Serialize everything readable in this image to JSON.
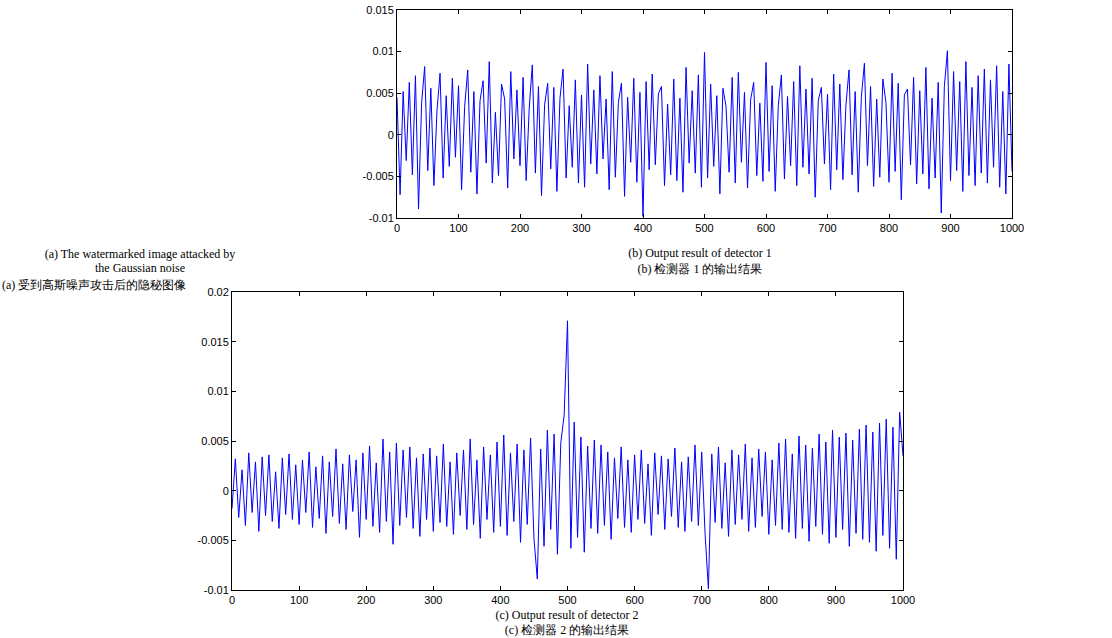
{
  "image_panel": {
    "title": "(a) The watermarked image attacked by the Gaussian noise",
    "subtitle": "(a) 受到高斯噪声攻击后的隐秘图像"
  },
  "chart_data": [
    {
      "type": "line",
      "title": "(b) Output result of detector 1",
      "subtitle": "(b) 检测器 1 的输出结果",
      "color": "#0000ff",
      "xlim": [
        0,
        1000
      ],
      "xticks": [
        0,
        100,
        200,
        300,
        400,
        500,
        600,
        700,
        800,
        900,
        1000
      ],
      "ylim": [
        -0.01,
        0.015
      ],
      "yticks": [
        -0.01,
        -0.005,
        0,
        0.005,
        0.01,
        0.015
      ],
      "x": [
        0,
        5,
        10,
        15,
        20,
        25,
        30,
        35,
        40,
        45,
        50,
        55,
        60,
        65,
        70,
        75,
        80,
        85,
        90,
        95,
        100,
        105,
        110,
        115,
        120,
        125,
        130,
        135,
        140,
        145,
        150,
        155,
        160,
        165,
        170,
        175,
        180,
        185,
        190,
        195,
        200,
        205,
        210,
        215,
        220,
        225,
        230,
        235,
        240,
        245,
        250,
        255,
        260,
        265,
        270,
        275,
        280,
        285,
        290,
        295,
        300,
        305,
        310,
        315,
        320,
        325,
        330,
        335,
        340,
        345,
        350,
        355,
        360,
        365,
        370,
        375,
        380,
        385,
        390,
        395,
        400,
        405,
        410,
        415,
        420,
        425,
        430,
        435,
        440,
        445,
        450,
        455,
        460,
        465,
        470,
        475,
        480,
        485,
        490,
        495,
        500,
        505,
        510,
        515,
        520,
        525,
        530,
        535,
        540,
        545,
        550,
        555,
        560,
        565,
        570,
        575,
        580,
        585,
        590,
        595,
        600,
        605,
        610,
        615,
        620,
        625,
        630,
        635,
        640,
        645,
        650,
        655,
        660,
        665,
        670,
        675,
        680,
        685,
        690,
        695,
        700,
        705,
        710,
        715,
        720,
        725,
        730,
        735,
        740,
        745,
        750,
        755,
        760,
        765,
        770,
        775,
        780,
        785,
        790,
        795,
        800,
        805,
        810,
        815,
        820,
        825,
        830,
        835,
        840,
        845,
        850,
        855,
        860,
        865,
        870,
        875,
        880,
        885,
        890,
        895,
        900,
        905,
        910,
        915,
        920,
        925,
        930,
        935,
        940,
        945,
        950,
        955,
        960,
        965,
        970,
        975,
        980,
        985,
        990,
        995,
        1000
      ],
      "values": [
        0.0045,
        -0.0072,
        0.0052,
        -0.0031,
        0.0063,
        -0.0048,
        0.0071,
        -0.0089,
        0.0038,
        0.0082,
        -0.0043,
        0.0056,
        -0.0061,
        0.0029,
        0.0074,
        -0.0052,
        0.0047,
        -0.0038,
        0.0068,
        -0.0027,
        0.0059,
        -0.0066,
        0.0034,
        0.0078,
        -0.0045,
        0.0052,
        -0.0071,
        0.0041,
        0.0065,
        -0.0034,
        0.0088,
        -0.0058,
        0.0027,
        -0.0049,
        0.0061,
        0.0043,
        -0.0064,
        0.0076,
        -0.0029,
        0.0054,
        -0.0037,
        0.0069,
        -0.0055,
        0.0032,
        0.0084,
        -0.0046,
        0.0058,
        -0.0073,
        0.0036,
        0.0062,
        -0.0041,
        0.0057,
        -0.0068,
        0.0044,
        0.0079,
        -0.0052,
        0.0035,
        -0.0039,
        0.0066,
        -0.0058,
        0.0048,
        -0.0063,
        0.0085,
        -0.0035,
        0.0054,
        -0.0047,
        0.0071,
        -0.0029,
        0.0043,
        -0.0066,
        0.0076,
        -0.0051,
        0.0039,
        0.0062,
        -0.0074,
        0.0045,
        -0.0033,
        0.0068,
        -0.0057,
        0.0051,
        -0.0098,
        0.0064,
        -0.0042,
        0.0073,
        -0.0036,
        0.0049,
        0.0058,
        -0.0061,
        0.0037,
        -0.0048,
        0.0067,
        -0.0055,
        0.0044,
        -0.0069,
        0.0081,
        -0.0034,
        0.0053,
        -0.0046,
        0.0072,
        -0.0063,
        0.0099,
        -0.0052,
        0.0061,
        -0.0038,
        0.0047,
        -0.0071,
        0.0056,
        0.0034,
        -0.0045,
        0.0069,
        -0.0058,
        0.0075,
        -0.0033,
        0.0051,
        -0.0064,
        0.0042,
        0.0063,
        -0.0049,
        0.0038,
        -0.0056,
        0.0087,
        -0.0044,
        0.0059,
        -0.0068,
        0.0035,
        0.0072,
        -0.0053,
        0.0046,
        -0.0037,
        0.0064,
        -0.0061,
        0.0083,
        -0.0039,
        0.0055,
        -0.0047,
        0.0068,
        -0.0075,
        0.0041,
        0.0057,
        -0.0035,
        0.0049,
        -0.0066,
        0.0073,
        -0.0042,
        0.0061,
        -0.0054,
        0.0036,
        0.0078,
        -0.0048,
        0.0052,
        -0.0069,
        0.0045,
        0.0086,
        -0.0037,
        0.0058,
        -0.0062,
        0.0043,
        -0.0051,
        0.0067,
        0.0039,
        -0.0057,
        0.0074,
        -0.0044,
        0.0062,
        -0.0078,
        0.0048,
        0.0055,
        -0.0036,
        0.0069,
        -0.0059,
        0.0053,
        -0.0047,
        0.0081,
        -0.0065,
        0.0044,
        -0.0052,
        0.0063,
        -0.0094,
        0.0058,
        0.0101,
        -0.0055,
        0.0076,
        -0.0043,
        0.0064,
        -0.0068,
        0.0088,
        -0.0049,
        0.0057,
        -0.0061,
        0.0071,
        -0.0046,
        0.0079,
        -0.0058,
        0.0066,
        -0.0039,
        0.0083,
        -0.0063,
        0.0052,
        -0.0071,
        0.0085,
        -0.0044
      ]
    },
    {
      "type": "line",
      "title": "(c) Output result of detector 2",
      "subtitle": "(c) 检测器 2 的输出结果",
      "color": "#0000ff",
      "xlim": [
        0,
        1000
      ],
      "xticks": [
        0,
        100,
        200,
        300,
        400,
        500,
        600,
        700,
        800,
        900,
        1000
      ],
      "ylim": [
        -0.01,
        0.02
      ],
      "yticks": [
        -0.01,
        -0.005,
        0,
        0.005,
        0.01,
        0.015,
        0.02
      ],
      "x": [
        0,
        5,
        10,
        15,
        20,
        25,
        30,
        35,
        40,
        45,
        50,
        55,
        60,
        65,
        70,
        75,
        80,
        85,
        90,
        95,
        100,
        105,
        110,
        115,
        120,
        125,
        130,
        135,
        140,
        145,
        150,
        155,
        160,
        165,
        170,
        175,
        180,
        185,
        190,
        195,
        200,
        205,
        210,
        215,
        220,
        225,
        230,
        235,
        240,
        245,
        250,
        255,
        260,
        265,
        270,
        275,
        280,
        285,
        290,
        295,
        300,
        305,
        310,
        315,
        320,
        325,
        330,
        335,
        340,
        345,
        350,
        355,
        360,
        365,
        370,
        375,
        380,
        385,
        390,
        395,
        400,
        405,
        410,
        415,
        420,
        425,
        430,
        435,
        440,
        445,
        450,
        455,
        460,
        465,
        470,
        475,
        480,
        485,
        490,
        495,
        500,
        505,
        510,
        515,
        520,
        525,
        530,
        535,
        540,
        545,
        550,
        555,
        560,
        565,
        570,
        575,
        580,
        585,
        590,
        595,
        600,
        605,
        610,
        615,
        620,
        625,
        630,
        635,
        640,
        645,
        650,
        655,
        660,
        665,
        670,
        675,
        680,
        685,
        690,
        695,
        700,
        705,
        710,
        715,
        720,
        725,
        730,
        735,
        740,
        745,
        750,
        755,
        760,
        765,
        770,
        775,
        780,
        785,
        790,
        795,
        800,
        805,
        810,
        815,
        820,
        825,
        830,
        835,
        840,
        845,
        850,
        855,
        860,
        865,
        870,
        875,
        880,
        885,
        890,
        895,
        900,
        905,
        910,
        915,
        920,
        925,
        930,
        935,
        940,
        945,
        950,
        955,
        960,
        965,
        970,
        975,
        980,
        985,
        990,
        995,
        1000
      ],
      "values": [
        -0.0018,
        0.0032,
        -0.0027,
        0.0021,
        -0.0035,
        0.0038,
        -0.0022,
        0.0029,
        -0.0041,
        0.0034,
        -0.0025,
        0.0036,
        -0.0031,
        0.0019,
        -0.0038,
        0.0033,
        -0.0024,
        0.0037,
        -0.0029,
        0.0026,
        -0.0034,
        0.0031,
        -0.0022,
        0.0039,
        -0.0037,
        0.0024,
        -0.0028,
        0.0035,
        -0.0043,
        0.0029,
        -0.0026,
        0.0042,
        -0.0033,
        0.0027,
        -0.0039,
        0.0036,
        -0.0021,
        0.0031,
        -0.0047,
        0.0038,
        -0.0029,
        0.0045,
        -0.0036,
        0.0028,
        -0.0042,
        0.0052,
        -0.0031,
        0.0039,
        -0.0054,
        0.0048,
        -0.0035,
        0.0041,
        -0.0027,
        0.0044,
        -0.0038,
        0.0033,
        -0.0046,
        0.0037,
        -0.0029,
        0.0043,
        -0.0041,
        0.0035,
        -0.0032,
        0.0047,
        -0.0036,
        0.0029,
        -0.0044,
        0.0038,
        -0.0025,
        0.0041,
        -0.0039,
        0.0052,
        -0.0034,
        0.0031,
        -0.0048,
        0.0044,
        -0.0029,
        0.0036,
        -0.0042,
        0.0049,
        -0.0036,
        0.0056,
        -0.0045,
        0.0038,
        -0.0031,
        0.0047,
        -0.0052,
        0.0041,
        -0.0034,
        0.0053,
        -0.0048,
        -0.0089,
        0.0042,
        -0.0056,
        0.0061,
        -0.0039,
        0.0057,
        -0.0064,
        0.0048,
        0.0076,
        0.0171,
        -0.0058,
        0.0069,
        -0.0047,
        0.0054,
        -0.0062,
        0.0045,
        -0.0038,
        0.0051,
        -0.0043,
        0.0046,
        -0.0035,
        0.0039,
        -0.0049,
        0.0033,
        -0.0028,
        0.0044,
        -0.0037,
        0.0031,
        -0.0042,
        0.0036,
        -0.0029,
        0.0041,
        -0.0033,
        0.0027,
        -0.0045,
        0.0038,
        -0.0024,
        0.0035,
        -0.0039,
        0.0032,
        -0.0026,
        0.0043,
        -0.0037,
        0.0029,
        -0.0041,
        0.0034,
        -0.0031,
        0.0046,
        -0.0035,
        0.0039,
        -0.0043,
        -0.0099,
        0.0037,
        -0.0032,
        0.0044,
        -0.0038,
        0.0028,
        -0.0046,
        0.0041,
        -0.0034,
        0.0036,
        -0.0029,
        0.0047,
        -0.0041,
        0.0033,
        -0.0037,
        0.0042,
        -0.0026,
        0.0039,
        -0.0044,
        0.0031,
        -0.0035,
        0.0048,
        -0.0039,
        0.0052,
        -0.0042,
        0.0037,
        -0.0048,
        0.0055,
        -0.0038,
        0.0046,
        -0.0051,
        0.0043,
        -0.0036,
        0.0057,
        -0.0044,
        0.0049,
        -0.0053,
        0.0061,
        -0.0047,
        0.0054,
        -0.0039,
        0.0058,
        -0.0056,
        0.0051,
        -0.0043,
        0.0062,
        -0.0049,
        0.0066,
        -0.0052,
        0.0059,
        -0.0061,
        0.0068,
        -0.0045,
        0.0072,
        -0.0058,
        0.0064,
        -0.0069,
        0.0079,
        0.0035
      ]
    }
  ]
}
